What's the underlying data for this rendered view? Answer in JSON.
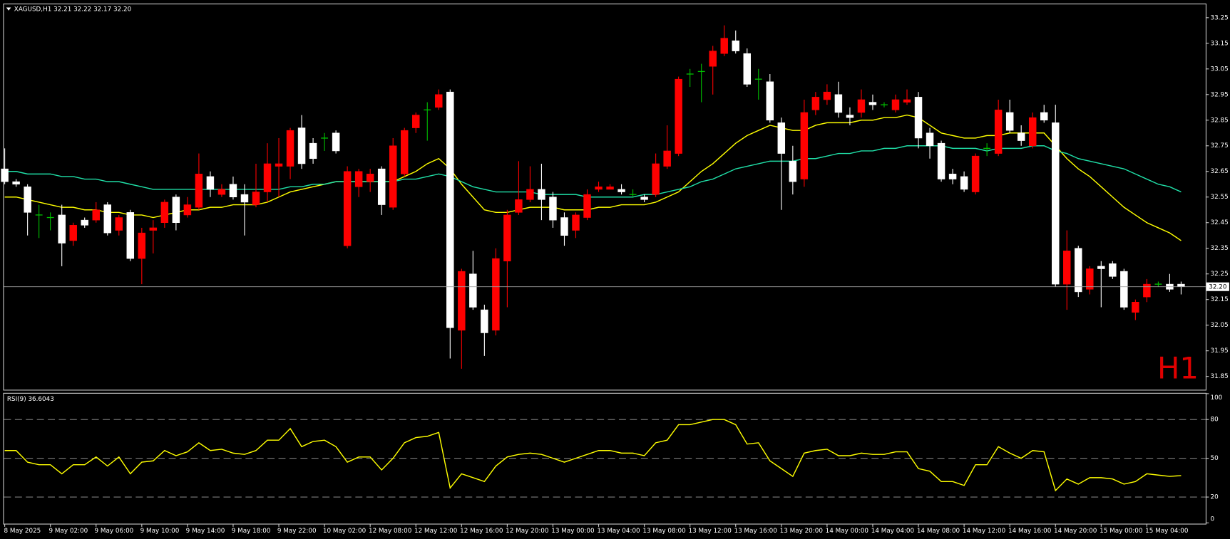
{
  "chart_data": [
    {
      "type": "candlestick",
      "title": "XAGUSD,H1  32.21 32.22 32.17 32.20",
      "watermark": "H1",
      "categories": [
        "8 May 2025",
        null,
        null,
        null,
        "9 May 02:00",
        null,
        null,
        null,
        "9 May 06:00",
        null,
        null,
        null,
        "9 May 10:00",
        null,
        null,
        null,
        "9 May 14:00",
        null,
        null,
        null,
        "9 May 18:00",
        null,
        null,
        null,
        "9 May 22:00",
        null,
        null,
        null,
        "10 May 02:00",
        null,
        null,
        null,
        "12 May 08:00",
        null,
        null,
        null,
        "12 May 12:00",
        null,
        null,
        null,
        "12 May 16:00",
        null,
        null,
        null,
        "12 May 20:00",
        null,
        null,
        null,
        "13 May 00:00",
        null,
        null,
        null,
        "13 May 04:00",
        null,
        null,
        null,
        "13 May 08:00",
        null,
        null,
        null,
        "13 May 12:00",
        null,
        null,
        null,
        "13 May 16:00",
        null,
        null,
        null,
        "13 May 20:00",
        null,
        null,
        null,
        "14 May 00:00",
        null,
        null,
        null,
        "14 May 04:00",
        null,
        null,
        null,
        "14 May 08:00",
        null,
        null,
        null,
        "14 May 12:00",
        null,
        null,
        null,
        "14 May 16:00",
        null,
        null,
        null,
        "14 May 20:00",
        null,
        null,
        null,
        "15 May 00:00",
        null,
        null,
        null,
        "15 May 04:00",
        null,
        null,
        null
      ],
      "open": [
        32.66,
        32.61,
        32.59,
        32.48,
        32.47,
        32.48,
        32.38,
        32.46,
        32.46,
        32.52,
        32.42,
        32.49,
        32.31,
        32.42,
        32.45,
        32.55,
        32.48,
        32.51,
        32.63,
        32.56,
        32.6,
        32.56,
        32.52,
        32.57,
        32.67,
        32.67,
        32.82,
        32.76,
        32.78,
        32.8,
        32.36,
        32.59,
        32.61,
        32.66,
        32.51,
        32.64,
        32.82,
        32.89,
        32.9,
        32.96,
        32.03,
        32.25,
        32.11,
        32.03,
        32.3,
        32.49,
        32.54,
        32.58,
        32.55,
        32.47,
        32.42,
        32.47,
        32.58,
        32.58,
        32.58,
        32.56,
        32.55,
        32.56,
        32.67,
        32.72,
        33.03,
        33.04,
        33.06,
        33.11,
        33.16,
        33.11,
        33.01,
        33.0,
        32.84,
        32.69,
        32.62,
        32.89,
        32.93,
        32.95,
        32.87,
        32.88,
        32.92,
        32.91,
        32.89,
        32.92,
        32.94,
        32.8,
        32.76,
        32.64,
        32.63,
        32.57,
        32.74,
        32.72,
        32.88,
        32.8,
        32.75,
        32.88,
        32.84,
        32.21,
        32.35,
        32.19,
        32.28,
        32.29,
        32.26,
        32.1,
        32.16,
        32.21,
        32.21,
        32.21
      ],
      "high": [
        32.74,
        32.62,
        32.6,
        32.52,
        32.49,
        32.52,
        32.45,
        32.47,
        32.53,
        32.53,
        32.48,
        32.5,
        32.43,
        32.46,
        32.54,
        32.56,
        32.55,
        32.72,
        32.65,
        32.6,
        32.63,
        32.6,
        32.68,
        32.76,
        32.78,
        32.82,
        32.87,
        32.78,
        32.8,
        32.81,
        32.67,
        32.66,
        32.66,
        32.67,
        32.78,
        32.82,
        32.88,
        32.92,
        32.97,
        32.97,
        32.27,
        32.34,
        32.13,
        32.35,
        32.5,
        32.69,
        32.67,
        32.68,
        32.57,
        32.49,
        32.49,
        32.58,
        32.61,
        32.6,
        32.6,
        32.58,
        32.56,
        32.72,
        32.83,
        33.02,
        33.05,
        33.07,
        33.14,
        33.22,
        33.2,
        33.13,
        33.05,
        33.03,
        32.86,
        32.75,
        32.93,
        32.96,
        32.99,
        33.0,
        32.9,
        32.97,
        32.95,
        32.92,
        32.95,
        32.97,
        32.96,
        32.82,
        32.77,
        32.66,
        32.65,
        32.72,
        32.76,
        32.93,
        32.93,
        32.83,
        32.88,
        32.91,
        32.91,
        32.42,
        32.36,
        32.28,
        32.3,
        32.3,
        32.27,
        32.15,
        32.23,
        32.22,
        32.25,
        32.22
      ],
      "low": [
        32.6,
        32.59,
        32.4,
        32.39,
        32.42,
        32.28,
        32.36,
        32.43,
        32.45,
        32.4,
        32.4,
        32.3,
        32.21,
        32.33,
        32.43,
        32.42,
        32.47,
        32.5,
        32.55,
        32.55,
        32.54,
        32.4,
        32.51,
        32.53,
        32.55,
        32.62,
        32.66,
        32.68,
        32.73,
        32.72,
        32.35,
        32.55,
        32.57,
        32.48,
        32.5,
        32.63,
        32.8,
        32.77,
        32.89,
        31.92,
        31.88,
        32.11,
        31.93,
        32.01,
        32.12,
        32.48,
        32.53,
        32.46,
        32.43,
        32.36,
        32.39,
        32.46,
        32.57,
        32.58,
        32.56,
        32.55,
        32.53,
        32.55,
        32.66,
        32.71,
        32.98,
        32.92,
        32.95,
        33.1,
        33.11,
        32.98,
        32.93,
        32.84,
        32.5,
        32.56,
        32.59,
        32.87,
        32.91,
        32.86,
        32.83,
        32.86,
        32.89,
        32.9,
        32.88,
        32.91,
        32.74,
        32.7,
        32.61,
        32.6,
        32.57,
        32.56,
        32.71,
        32.71,
        32.8,
        32.75,
        32.74,
        32.84,
        32.2,
        32.11,
        32.16,
        32.17,
        32.12,
        32.23,
        32.11,
        32.07,
        32.14,
        32.2,
        32.18,
        32.17
      ],
      "close": [
        32.61,
        32.6,
        32.49,
        32.48,
        32.47,
        32.37,
        32.44,
        32.44,
        32.5,
        32.41,
        32.47,
        32.31,
        32.41,
        32.43,
        32.53,
        32.45,
        32.52,
        32.64,
        32.58,
        32.58,
        32.55,
        32.53,
        32.57,
        32.68,
        32.68,
        32.81,
        32.68,
        32.7,
        32.78,
        32.73,
        32.65,
        32.65,
        32.64,
        32.52,
        32.75,
        32.81,
        32.87,
        32.89,
        32.95,
        32.04,
        32.26,
        32.12,
        32.02,
        32.31,
        32.48,
        32.54,
        32.58,
        32.54,
        32.46,
        32.4,
        32.48,
        32.56,
        32.59,
        32.59,
        32.57,
        32.56,
        32.54,
        32.68,
        32.73,
        33.01,
        33.03,
        33.04,
        33.12,
        33.17,
        33.12,
        32.99,
        33.01,
        32.85,
        32.72,
        32.61,
        32.88,
        32.94,
        32.96,
        32.88,
        32.86,
        32.93,
        32.91,
        32.91,
        32.93,
        32.93,
        32.78,
        32.75,
        32.62,
        32.62,
        32.58,
        32.71,
        32.74,
        32.89,
        32.81,
        32.77,
        32.86,
        32.85,
        32.21,
        32.34,
        32.18,
        32.27,
        32.27,
        32.24,
        32.12,
        32.14,
        32.21,
        32.21,
        32.19,
        32.2
      ],
      "up_color": "#ff0000",
      "down_color": "#ffffff",
      "doji_color": "#00c000",
      "overlays": [
        {
          "color": "#ffff00",
          "values": [
            32.55,
            32.55,
            32.54,
            32.53,
            32.52,
            32.51,
            32.51,
            32.5,
            32.5,
            32.49,
            32.49,
            32.48,
            32.48,
            32.47,
            32.48,
            32.49,
            32.5,
            32.5,
            32.51,
            32.51,
            32.52,
            32.52,
            32.52,
            32.53,
            32.55,
            32.57,
            32.58,
            32.59,
            32.6,
            32.61,
            32.61,
            32.61,
            32.61,
            32.61,
            32.61,
            32.63,
            32.65,
            32.68,
            32.7,
            32.66,
            32.6,
            32.55,
            32.5,
            32.49,
            32.49,
            32.5,
            32.51,
            32.51,
            32.51,
            32.5,
            32.5,
            32.5,
            32.51,
            32.51,
            32.52,
            32.52,
            32.52,
            32.53,
            32.55,
            32.57,
            32.61,
            32.65,
            32.68,
            32.72,
            32.76,
            32.79,
            32.81,
            32.83,
            32.82,
            32.81,
            32.81,
            32.83,
            32.84,
            32.84,
            32.84,
            32.85,
            32.85,
            32.86,
            32.86,
            32.87,
            32.86,
            32.83,
            32.8,
            32.79,
            32.78,
            32.78,
            32.79,
            32.79,
            32.8,
            32.8,
            32.8,
            32.8,
            32.75,
            32.7,
            32.66,
            32.63,
            32.59,
            32.55,
            32.51,
            32.48,
            32.45,
            32.43,
            32.41,
            32.38
          ]
        },
        {
          "color": "#20e0a8",
          "values": [
            32.65,
            32.65,
            32.64,
            32.64,
            32.64,
            32.63,
            32.63,
            32.62,
            32.62,
            32.61,
            32.61,
            32.6,
            32.59,
            32.58,
            32.58,
            32.58,
            32.58,
            32.58,
            32.58,
            32.58,
            32.58,
            32.58,
            32.58,
            32.58,
            32.58,
            32.59,
            32.59,
            32.6,
            32.6,
            32.61,
            32.61,
            32.61,
            32.61,
            32.61,
            32.61,
            32.62,
            32.62,
            32.63,
            32.64,
            32.63,
            32.61,
            32.59,
            32.58,
            32.57,
            32.57,
            32.57,
            32.57,
            32.56,
            32.56,
            32.56,
            32.56,
            32.55,
            32.55,
            32.55,
            32.55,
            32.55,
            32.56,
            32.56,
            32.57,
            32.58,
            32.59,
            32.61,
            32.62,
            32.64,
            32.66,
            32.67,
            32.68,
            32.69,
            32.69,
            32.69,
            32.7,
            32.7,
            32.71,
            32.72,
            32.72,
            32.73,
            32.73,
            32.74,
            32.74,
            32.75,
            32.75,
            32.75,
            32.75,
            32.74,
            32.74,
            32.74,
            32.73,
            32.74,
            32.74,
            32.74,
            32.75,
            32.75,
            32.73,
            32.72,
            32.7,
            32.69,
            32.68,
            32.67,
            32.66,
            32.64,
            32.62,
            32.6,
            32.59,
            32.57
          ]
        }
      ],
      "current_price": {
        "value": 32.2,
        "label": "32.20"
      },
      "ylim": [
        31.798,
        33.302
      ],
      "yticks": [
        33.25,
        33.15,
        33.05,
        32.95,
        32.85,
        32.75,
        32.65,
        32.55,
        32.45,
        32.35,
        32.25,
        32.15,
        32.05,
        31.95,
        31.85
      ],
      "grid": false
    },
    {
      "type": "line",
      "title": "RSI(9) 36.6043",
      "color": "#ffff00",
      "values": [
        56,
        56,
        47,
        45,
        45,
        38,
        45,
        45,
        51,
        44,
        51,
        38,
        47,
        48,
        56,
        52,
        55,
        62,
        56,
        57,
        54,
        53,
        56,
        64,
        64,
        73,
        59,
        63,
        64,
        59,
        47,
        51,
        51,
        41,
        50,
        62,
        66,
        67,
        70,
        27,
        38,
        35,
        32,
        44,
        51,
        53,
        54,
        53,
        50,
        47,
        50,
        53,
        56,
        56,
        54,
        54,
        52,
        62,
        64,
        76,
        76,
        78,
        80,
        80,
        76,
        61,
        62,
        48,
        42,
        36,
        54,
        56,
        57,
        52,
        52,
        54,
        53,
        53,
        55,
        55,
        42,
        40,
        32,
        32,
        29,
        45,
        45,
        59,
        54,
        50,
        56,
        55,
        25,
        34,
        30,
        35,
        35,
        34,
        30,
        32,
        38,
        37,
        36,
        36.6043
      ],
      "levels": [
        80,
        50,
        20
      ],
      "ylim": [
        0,
        100
      ],
      "yticks": [
        100,
        80,
        50,
        20,
        0
      ]
    }
  ]
}
